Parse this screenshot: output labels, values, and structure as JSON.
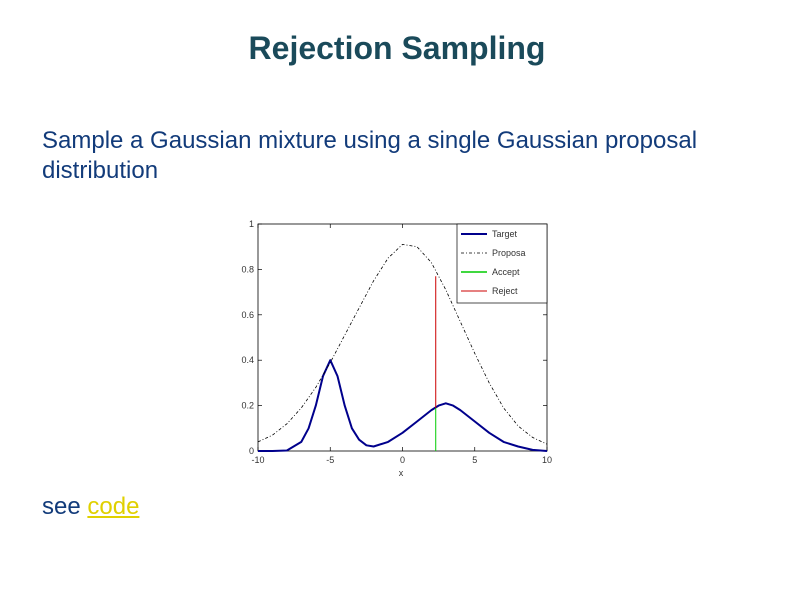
{
  "slide": {
    "title": "Rejection Sampling",
    "body": "Sample a Gaussian mixture using a single Gaussian proposal distribution",
    "footer_prefix": "see ",
    "footer_link": "code"
  },
  "colors": {
    "title": "#1a4a5a",
    "text": "#123b7a",
    "link": "#e0d000",
    "target": "#00008c",
    "proposal": "#000000",
    "accept": "#00cc00",
    "reject": "#cc0000"
  },
  "chart_data": {
    "type": "line",
    "xlabel": "x",
    "ylabel": "",
    "xlim": [
      -10,
      10
    ],
    "ylim": [
      0,
      1
    ],
    "x_ticks": [
      -10,
      -5,
      0,
      5,
      10
    ],
    "y_ticks": [
      0,
      0.2,
      0.4,
      0.6,
      0.8,
      1
    ],
    "x_tick_labels": [
      "-10",
      "-5",
      "0",
      "5",
      "10"
    ],
    "y_tick_labels": [
      "0",
      "0.2",
      "0.4",
      "0.6",
      "0.8",
      "1"
    ],
    "legend_position": "top-right",
    "series": [
      {
        "name": "Target",
        "style": "solid",
        "x": [
          -10,
          -9,
          -8,
          -7,
          -6.5,
          -6,
          -5.5,
          -5,
          -4.5,
          -4,
          -3.5,
          -3,
          -2.5,
          -2,
          -1,
          0,
          1,
          2,
          2.5,
          3,
          3.5,
          4,
          5,
          6,
          7,
          8,
          9,
          10
        ],
        "y": [
          0.0,
          0.0,
          0.002,
          0.04,
          0.1,
          0.2,
          0.33,
          0.4,
          0.33,
          0.2,
          0.1,
          0.05,
          0.025,
          0.02,
          0.04,
          0.08,
          0.13,
          0.18,
          0.2,
          0.21,
          0.2,
          0.18,
          0.13,
          0.08,
          0.04,
          0.02,
          0.005,
          0.0
        ]
      },
      {
        "name": "Proposa",
        "style": "dashdot",
        "x": [
          -10,
          -9,
          -8,
          -7,
          -6,
          -5,
          -4,
          -3,
          -2,
          -1,
          0,
          1,
          2,
          3,
          4,
          5,
          6,
          7,
          8,
          9,
          10
        ],
        "y": [
          0.04,
          0.07,
          0.12,
          0.19,
          0.28,
          0.39,
          0.51,
          0.63,
          0.75,
          0.85,
          0.91,
          0.9,
          0.83,
          0.71,
          0.57,
          0.43,
          0.3,
          0.19,
          0.11,
          0.06,
          0.03
        ]
      }
    ],
    "markers": [
      {
        "name": "Accept",
        "x": 2.3,
        "y0": 0,
        "y1": 0.19
      },
      {
        "name": "Reject",
        "x": 2.3,
        "y0": 0.19,
        "y1": 0.77
      }
    ],
    "legend": [
      "Target",
      "Proposa",
      "Accept",
      "Reject"
    ]
  }
}
